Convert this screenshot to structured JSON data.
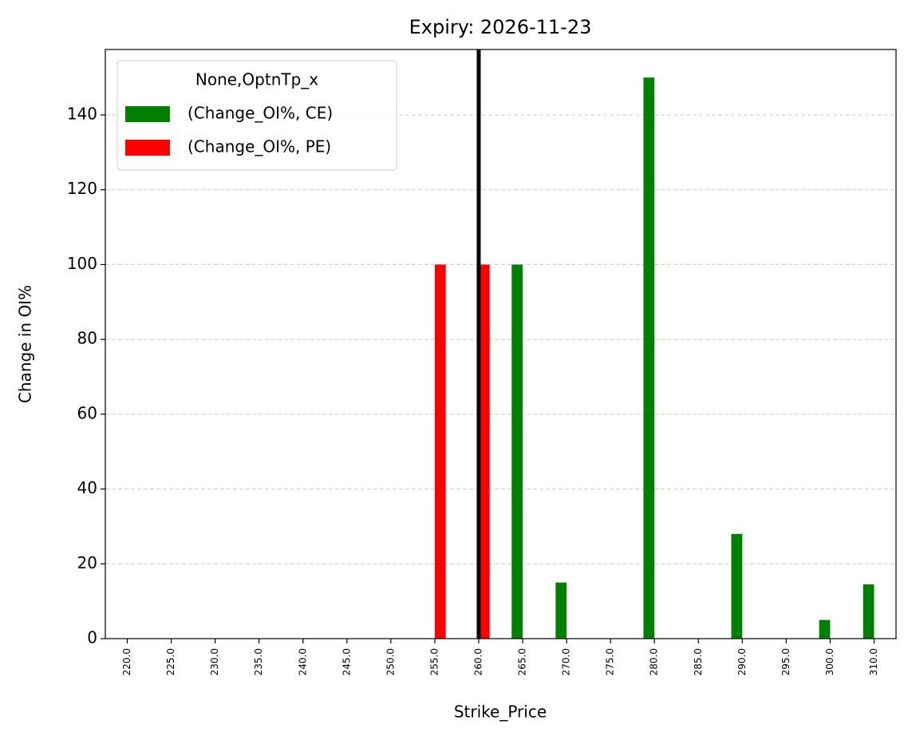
{
  "chart_data": {
    "type": "bar",
    "title": "Expiry: 2026-11-23",
    "x_label": "Strike_Price",
    "y_label": "Change in OI%",
    "categories": [
      "220.0",
      "225.0",
      "230.0",
      "235.0",
      "240.0",
      "245.0",
      "250.0",
      "255.0",
      "260.0",
      "265.0",
      "270.0",
      "275.0",
      "280.0",
      "285.0",
      "290.0",
      "295.0",
      "300.0",
      "310.0"
    ],
    "series": [
      {
        "name": "(Change_OI%, CE)",
        "color": "#008000",
        "values": [
          0,
          0,
          0,
          0,
          0,
          0,
          0,
          0,
          0,
          100,
          15,
          0,
          150,
          0,
          28,
          0,
          5,
          14.5
        ]
      },
      {
        "name": "(Change_OI%, PE)",
        "color": "#ff0000",
        "values": [
          0,
          0,
          0,
          0,
          0,
          0,
          0,
          100,
          100,
          0,
          0,
          0,
          0,
          0,
          0,
          0,
          0,
          0
        ]
      }
    ],
    "legend_title": "None,OptnTp_x",
    "legend_position": "upper-left",
    "ylim": [
      0,
      157.5
    ],
    "yticks": [
      0,
      20,
      40,
      60,
      80,
      100,
      120,
      140
    ],
    "grid": true,
    "vline": {
      "x": 260,
      "color": "#000000"
    }
  }
}
